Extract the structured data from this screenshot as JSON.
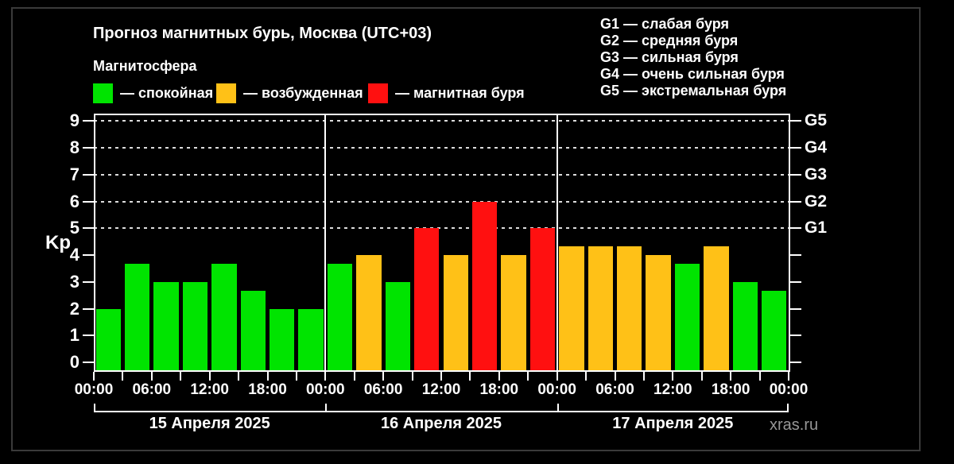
{
  "title": "Прогноз магнитных бурь, Москва (UTC+03)",
  "subtitle": "Магнитосфера",
  "legend": {
    "quiet": "— спокойная",
    "excited": "— возбужденная",
    "storm": "— магнитная буря"
  },
  "storm_scale": [
    {
      "code": "G1",
      "desc": "— слабая буря"
    },
    {
      "code": "G2",
      "desc": "— средняя буря"
    },
    {
      "code": "G3",
      "desc": "— сильная буря"
    },
    {
      "code": "G4",
      "desc": "— очень сильная буря"
    },
    {
      "code": "G5",
      "desc": "— экстремальная буря"
    }
  ],
  "watermark": "xras.ru",
  "colors": {
    "quiet": "#00e400",
    "excited": "#ffc117",
    "storm": "#ff1010",
    "background": "#000000",
    "axis": "#ffffff"
  },
  "chart_data": {
    "type": "bar",
    "ylabel": "Kp",
    "ylim": [
      0,
      9.3
    ],
    "yticks": [
      0,
      1,
      2,
      3,
      4,
      5,
      6,
      7,
      8,
      9
    ],
    "gridlines_at": [
      5,
      6,
      7,
      8,
      9
    ],
    "grid": "dashed horizontal at Kp 5-9",
    "legend_position": "top-left",
    "right_axis": [
      {
        "value": 5,
        "label": "G1"
      },
      {
        "value": 6,
        "label": "G2"
      },
      {
        "value": 7,
        "label": "G3"
      },
      {
        "value": 8,
        "label": "G4"
      },
      {
        "value": 9,
        "label": "G5"
      }
    ],
    "hours_per_bar": 3,
    "x_tick_labels": [
      "00:00",
      "06:00",
      "12:00",
      "18:00",
      "00:00",
      "06:00",
      "12:00",
      "18:00",
      "00:00",
      "06:00",
      "12:00",
      "18:00",
      "00:00"
    ],
    "days": [
      {
        "date_label": "15 Апреля 2025",
        "bars": [
          {
            "kp": 2.0,
            "state": "quiet"
          },
          {
            "kp": 3.67,
            "state": "quiet"
          },
          {
            "kp": 3.0,
            "state": "quiet"
          },
          {
            "kp": 3.0,
            "state": "quiet"
          },
          {
            "kp": 3.67,
            "state": "quiet"
          },
          {
            "kp": 2.67,
            "state": "quiet"
          },
          {
            "kp": 2.0,
            "state": "quiet"
          },
          {
            "kp": 2.0,
            "state": "quiet"
          }
        ]
      },
      {
        "date_label": "16 Апреля 2025",
        "bars": [
          {
            "kp": 3.67,
            "state": "quiet"
          },
          {
            "kp": 4.0,
            "state": "excited"
          },
          {
            "kp": 3.0,
            "state": "quiet"
          },
          {
            "kp": 5.0,
            "state": "storm"
          },
          {
            "kp": 4.0,
            "state": "excited"
          },
          {
            "kp": 6.0,
            "state": "storm"
          },
          {
            "kp": 4.0,
            "state": "excited"
          },
          {
            "kp": 5.0,
            "state": "storm"
          }
        ]
      },
      {
        "date_label": "17 Апреля 2025",
        "bars": [
          {
            "kp": 4.33,
            "state": "excited"
          },
          {
            "kp": 4.33,
            "state": "excited"
          },
          {
            "kp": 4.33,
            "state": "excited"
          },
          {
            "kp": 4.0,
            "state": "excited"
          },
          {
            "kp": 3.67,
            "state": "quiet"
          },
          {
            "kp": 4.33,
            "state": "excited"
          },
          {
            "kp": 3.0,
            "state": "quiet"
          },
          {
            "kp": 2.67,
            "state": "quiet"
          }
        ]
      }
    ]
  }
}
